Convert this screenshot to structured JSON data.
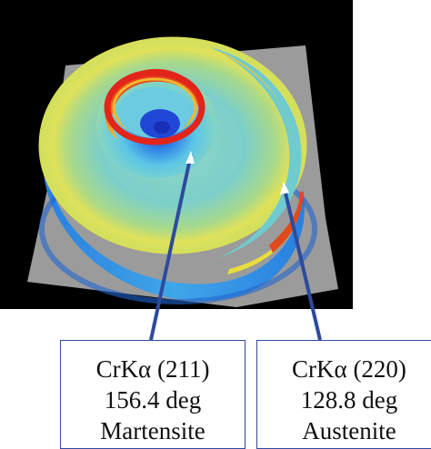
{
  "colors": {
    "background": "#000000",
    "plate": "#9b9b9b",
    "leader": "#2e4a9e",
    "ring_outer": "#2b8fe0",
    "ring_mid": "#5ec8d8",
    "ring_yellow": "#e6e04a",
    "ring_red": "#e2241b"
  },
  "labels": [
    {
      "line1": "CrKα (211)",
      "line2": "156.4 deg",
      "line3": "Martensite"
    },
    {
      "line1": "CrKα (220)",
      "line2": "128.8 deg",
      "line3": "Austenite"
    }
  ]
}
